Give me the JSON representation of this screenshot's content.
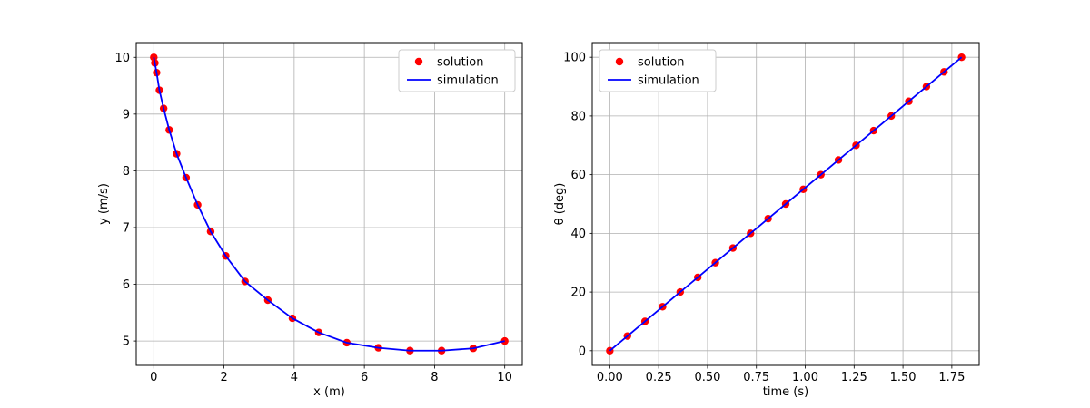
{
  "figure": {
    "background": "#ffffff",
    "marker_color": "#ff0000",
    "line_color": "#0000ff",
    "grid_color": "#b0b0b0"
  },
  "chart_data": [
    {
      "type": "scatter",
      "title": "",
      "xlabel": "x (m)",
      "ylabel": "y (m/s)",
      "xlim": [
        -0.5,
        10.5
      ],
      "ylim": [
        4.57,
        10.26
      ],
      "xticks": [
        0,
        2,
        4,
        6,
        8,
        10
      ],
      "xtick_labels": [
        "0",
        "2",
        "4",
        "6",
        "8",
        "10"
      ],
      "yticks": [
        5,
        6,
        7,
        8,
        9,
        10
      ],
      "ytick_labels": [
        "5",
        "6",
        "7",
        "8",
        "9",
        "10"
      ],
      "grid": true,
      "legend": {
        "position": "upper-right",
        "entries": [
          {
            "label": "solution",
            "marker": "circle",
            "color": "#ff0000"
          },
          {
            "label": "simulation",
            "marker": "line",
            "color": "#0000ff"
          }
        ]
      },
      "series": [
        {
          "name": "solution",
          "style": "markers",
          "color": "#ff0000",
          "x": [
            0.0,
            0.03,
            0.08,
            0.16,
            0.28,
            0.44,
            0.65,
            0.92,
            1.25,
            1.62,
            2.05,
            2.6,
            3.25,
            3.95,
            4.7,
            5.5,
            6.4,
            7.3,
            8.2,
            9.1,
            10.0
          ],
          "y": [
            10.0,
            9.9,
            9.73,
            9.42,
            9.1,
            8.72,
            8.3,
            7.88,
            7.4,
            6.93,
            6.5,
            6.05,
            5.72,
            5.4,
            5.15,
            4.97,
            4.88,
            4.83,
            4.83,
            4.87,
            5.0
          ]
        },
        {
          "name": "simulation",
          "style": "line",
          "color": "#0000ff",
          "x": [
            0.0,
            0.03,
            0.08,
            0.16,
            0.28,
            0.44,
            0.65,
            0.92,
            1.25,
            1.62,
            2.05,
            2.6,
            3.25,
            3.95,
            4.7,
            5.5,
            6.4,
            7.3,
            8.2,
            9.1,
            10.0
          ],
          "y": [
            10.0,
            9.9,
            9.73,
            9.42,
            9.1,
            8.72,
            8.3,
            7.88,
            7.4,
            6.93,
            6.5,
            6.05,
            5.72,
            5.4,
            5.15,
            4.97,
            4.88,
            4.83,
            4.83,
            4.87,
            5.0
          ]
        }
      ]
    },
    {
      "type": "scatter",
      "title": "",
      "xlabel": "time (s)",
      "ylabel": "θ (deg)",
      "xlim": [
        -0.09,
        1.89
      ],
      "ylim": [
        -5,
        105
      ],
      "xticks": [
        0.0,
        0.25,
        0.5,
        0.75,
        1.0,
        1.25,
        1.5,
        1.75
      ],
      "xtick_labels": [
        "0.00",
        "0.25",
        "0.50",
        "0.75",
        "1.00",
        "1.25",
        "1.50",
        "1.75"
      ],
      "yticks": [
        0,
        20,
        40,
        60,
        80,
        100
      ],
      "ytick_labels": [
        "0",
        "20",
        "40",
        "60",
        "80",
        "100"
      ],
      "grid": true,
      "legend": {
        "position": "upper-left",
        "entries": [
          {
            "label": "solution",
            "marker": "circle",
            "color": "#ff0000"
          },
          {
            "label": "simulation",
            "marker": "line",
            "color": "#0000ff"
          }
        ]
      },
      "series": [
        {
          "name": "solution",
          "style": "markers",
          "x": [
            0.0,
            0.09,
            0.18,
            0.27,
            0.36,
            0.45,
            0.54,
            0.63,
            0.72,
            0.81,
            0.9,
            0.99,
            1.08,
            1.17,
            1.26,
            1.35,
            1.44,
            1.53,
            1.62,
            1.71,
            1.8
          ],
          "y": [
            0,
            5,
            10,
            15,
            20,
            25,
            30,
            35,
            40,
            45,
            50,
            55,
            60,
            65,
            70,
            75,
            80,
            85,
            90,
            95,
            100
          ],
          "color": "#ff0000"
        },
        {
          "name": "simulation",
          "style": "line",
          "x": [
            0.0,
            0.09,
            0.18,
            0.27,
            0.36,
            0.45,
            0.54,
            0.63,
            0.72,
            0.81,
            0.9,
            0.99,
            1.08,
            1.17,
            1.26,
            1.35,
            1.44,
            1.53,
            1.62,
            1.71,
            1.8
          ],
          "y": [
            0,
            5,
            10,
            15,
            20,
            25,
            30,
            35,
            40,
            45,
            50,
            55,
            60,
            65,
            70,
            75,
            80,
            85,
            90,
            95,
            100
          ],
          "color": "#0000ff"
        }
      ]
    }
  ]
}
